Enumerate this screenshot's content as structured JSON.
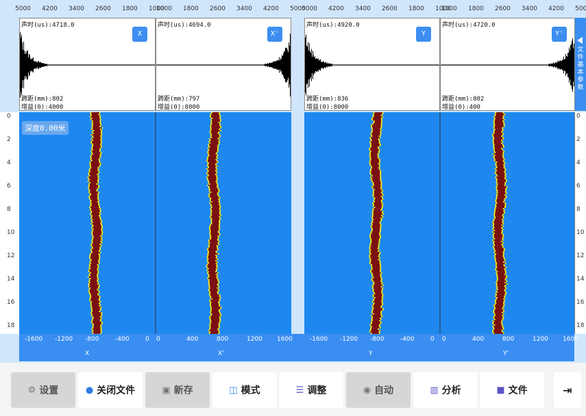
{
  "top_axis": {
    "groups": [
      [
        "5000",
        "4200",
        "3400",
        "2600",
        "1800",
        "1000"
      ],
      [
        "1000",
        "1800",
        "2600",
        "3400",
        "4200",
        "5000"
      ],
      [
        "5000",
        "4200",
        "3400",
        "2600",
        "1800",
        "1000"
      ],
      [
        "1000",
        "1800",
        "2600",
        "3400",
        "4200",
        "5000"
      ]
    ]
  },
  "channels": [
    {
      "button": "X",
      "time": "声时(us):4718.0",
      "span": "跨距(mm):802",
      "gain": "增益(0):4000",
      "bottom_label": "X"
    },
    {
      "button": "X'",
      "time": "声时(us):4694.0",
      "span": "跨距(mm):797",
      "gain": "增益(0):8000",
      "bottom_label": "X'"
    },
    {
      "button": "Y",
      "time": "声时(us):4920.0",
      "span": "跨距(mm):836",
      "gain": "增益(0):8000",
      "bottom_label": "Y"
    },
    {
      "button": "Y'",
      "time": "声时(us):4720.0",
      "span": "跨距(mm):802",
      "gain": "增益(0):400",
      "bottom_label": "Y'"
    }
  ],
  "side_tab": {
    "label": "文件基本参数"
  },
  "depth_badge": "深度0.00米",
  "depth_ticks": [
    "0",
    "2",
    "4",
    "6",
    "8",
    "10",
    "12",
    "14",
    "16",
    "18"
  ],
  "bottom_axis": {
    "left_ticks": [
      "-1600",
      "-1200",
      "-800",
      "-400",
      "0"
    ],
    "right_ticks": [
      "0",
      "400",
      "800",
      "1200",
      "1600"
    ]
  },
  "toolbar": {
    "settings": "设置",
    "close_file": "关闭文件",
    "save_new": "新存",
    "mode": "模式",
    "adjust": "调整",
    "auto": "自动",
    "analyze": "分析",
    "file": "文件"
  },
  "colors": {
    "accent": "#3a8ef2",
    "image_bg": "#1e88f0",
    "trace_core": "#7a1010",
    "trace_edge": "#e8e020"
  }
}
